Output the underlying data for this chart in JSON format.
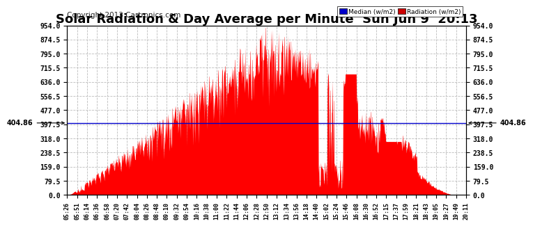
{
  "title": "Solar Radiation & Day Average per Minute  Sun Jun 9  20:13",
  "copyright": "Copyright 2013 Cartronics.com",
  "legend_median_label": "Median (w/m2)",
  "legend_radiation_label": "Radiation (w/m2)",
  "median_value": 404.86,
  "yticks": [
    0.0,
    79.5,
    159.0,
    238.5,
    318.0,
    397.5,
    477.0,
    556.5,
    636.0,
    715.5,
    795.0,
    874.5,
    954.0
  ],
  "ytick_labels": [
    "0.0",
    "79.5",
    "159.0",
    "238.5",
    "318.0",
    "397.5",
    "477.0",
    "556.5",
    "636.0",
    "715.5",
    "795.0",
    "874.5",
    "954.0"
  ],
  "ymax": 954.0,
  "ymin": 0.0,
  "bar_color": "#FF0000",
  "median_line_color": "#0000CC",
  "background_color": "#FFFFFF",
  "grid_color": "#BBBBBB",
  "title_fontsize": 13,
  "copyright_fontsize": 7.5,
  "xtick_labels": [
    "05:26",
    "05:51",
    "06:14",
    "06:36",
    "06:58",
    "07:20",
    "07:42",
    "08:04",
    "08:26",
    "08:48",
    "09:10",
    "09:32",
    "09:54",
    "10:16",
    "10:38",
    "11:00",
    "11:22",
    "11:44",
    "12:06",
    "12:28",
    "12:50",
    "13:12",
    "13:34",
    "13:56",
    "14:18",
    "14:40",
    "15:02",
    "15:24",
    "15:46",
    "16:08",
    "16:30",
    "16:52",
    "17:15",
    "17:37",
    "17:59",
    "18:21",
    "18:43",
    "19:05",
    "19:27",
    "19:49",
    "20:11"
  ],
  "n_points": 890,
  "rise_minute": 5,
  "peak_minute": 440,
  "set_minute": 860,
  "seed": 17
}
